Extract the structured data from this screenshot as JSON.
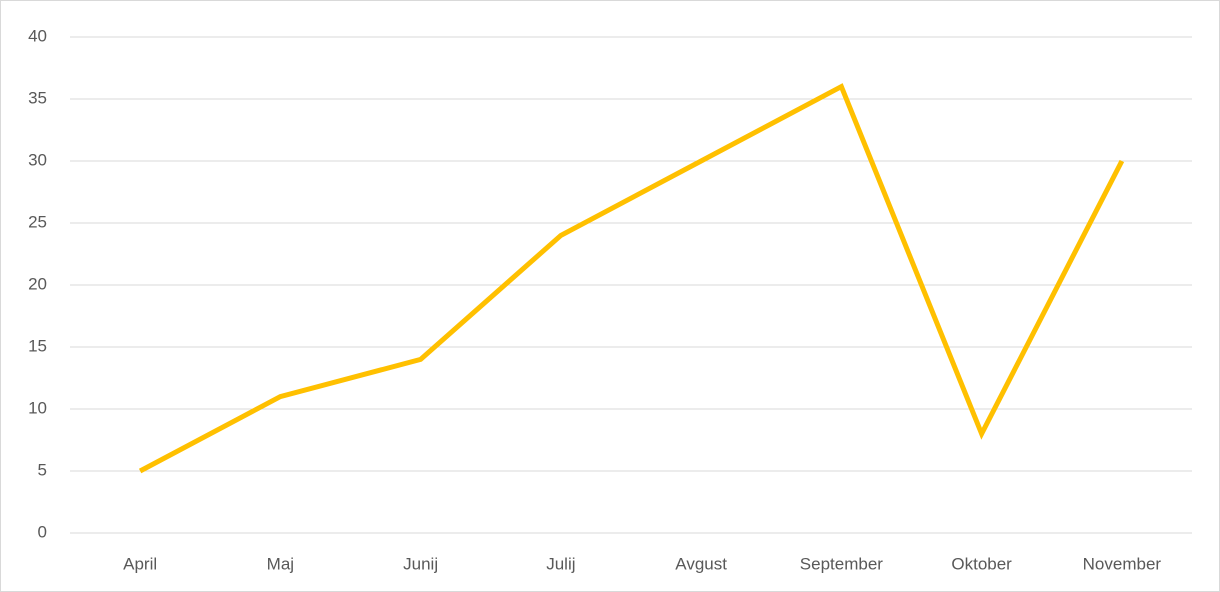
{
  "chart_data": {
    "type": "line",
    "categories": [
      "April",
      "Maj",
      "Junij",
      "Julij",
      "Avgust",
      "September",
      "Oktober",
      "November"
    ],
    "series": [
      {
        "color": "#FFC000",
        "values": [
          5,
          11,
          14,
          24,
          30,
          36,
          8,
          30
        ]
      }
    ],
    "ylim": [
      0,
      40
    ],
    "yticks": [
      0,
      5,
      10,
      15,
      20,
      25,
      30,
      35,
      40
    ],
    "grid": true
  }
}
